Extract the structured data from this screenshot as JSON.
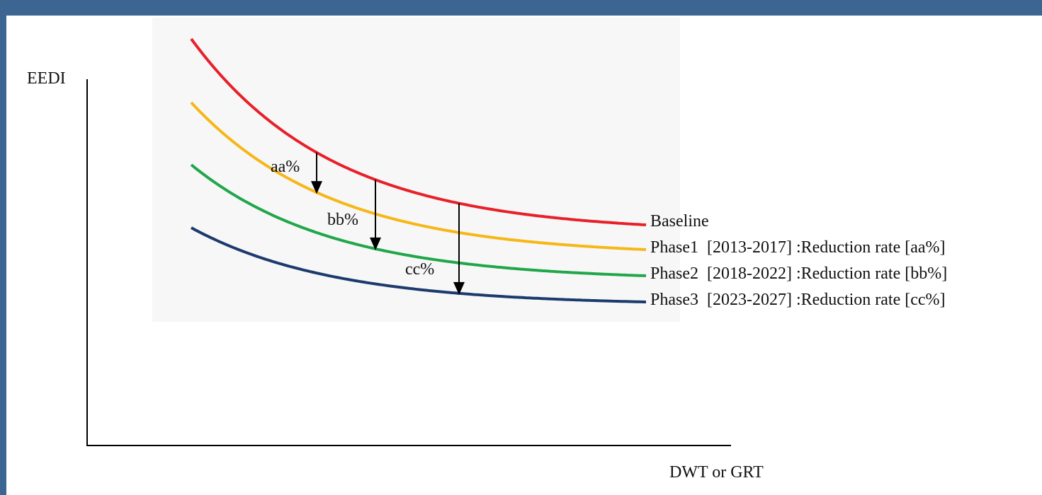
{
  "chart_data": {
    "type": "line",
    "ylabel": "EEDI",
    "xlabel": "DWT or GRT",
    "series": [
      {
        "name": "Baseline",
        "color": "#e8202a",
        "offset": 0
      },
      {
        "name": "Phase1  [2013-2017] :Reduction rate [aa%]",
        "color": "#f6b717",
        "offset": 1
      },
      {
        "name": "Phase2  [2018-2022] :Reduction rate [bb%]",
        "color": "#21a64a",
        "offset": 2
      },
      {
        "name": "Phase3  [2023-2027] :Reduction rate [cc%]",
        "color": "#1c3a6e",
        "offset": 3
      }
    ],
    "reductions": [
      {
        "label": "aa%",
        "from_series": 0,
        "to_series": 1
      },
      {
        "label": "bb%",
        "from_series": 0,
        "to_series": 2
      },
      {
        "label": "cc%",
        "from_series": 0,
        "to_series": 3
      }
    ]
  }
}
